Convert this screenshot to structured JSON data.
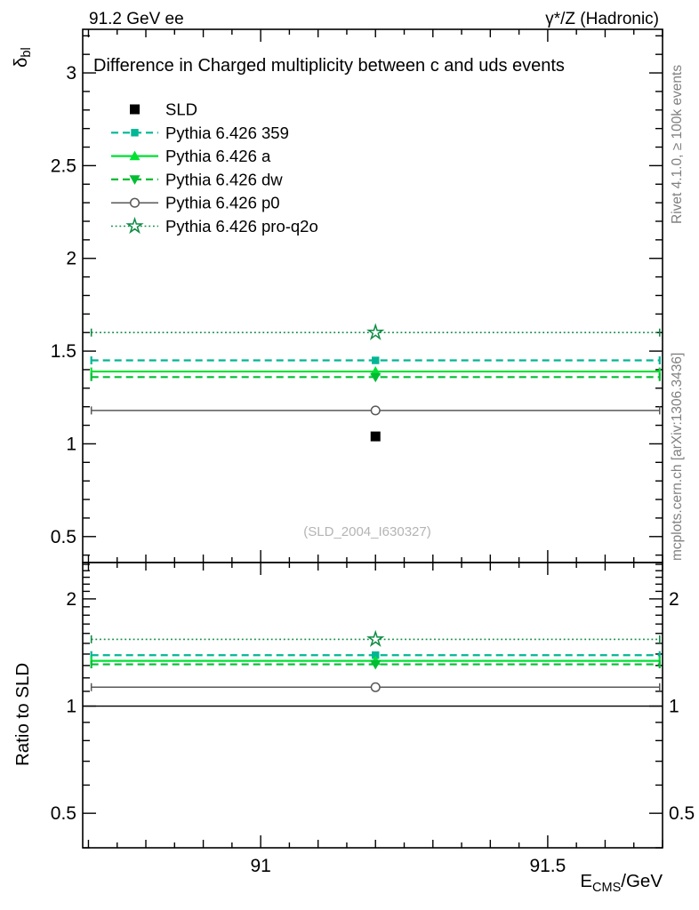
{
  "header": {
    "left": "91.2 GeV ee",
    "right": "γ*/Z (Hadronic)"
  },
  "side_notes": {
    "rivet": "Rivet 4.1.0, ≥ 100k events",
    "mcplots": "mcplots.cern.ch [arXiv:1306.3436]"
  },
  "watermark": "(SLD_2004_I630327)",
  "chart_data": {
    "type": "line",
    "title": "Difference in Charged multiplicity between c and uds events",
    "ylabel": "δ",
    "ylabel_sub": "bl",
    "xlabel": "E",
    "xlabel_sub": "CMS",
    "xlabel_rest": "/GeV",
    "ratio_ylabel": "Ratio to SLD",
    "x": {
      "min": 90.69,
      "max": 91.7,
      "minor_step": 0.05,
      "medium_step": 0.1,
      "major_step": 0.5,
      "ticks_labeled": [
        91,
        91.5
      ]
    },
    "main_axis": {
      "scale": "linear",
      "min": 0.36,
      "max": 3.235,
      "minor_step": 0.1,
      "ticks_labeled": [
        0.5,
        1,
        1.5,
        2,
        2.5,
        3
      ]
    },
    "ratio_axis": {
      "scale": "log",
      "min": 0.4,
      "max": 2.53,
      "minor_step": 0.1,
      "ticks_labeled": [
        0.5,
        1,
        2
      ]
    },
    "bin": {
      "x_low": 90.705,
      "x_high": 91.695,
      "x_center": 91.2
    },
    "reference": {
      "name": "SLD",
      "value": 1.04,
      "ratio": 1.0,
      "marker": "filled-square",
      "color": "#000000"
    },
    "series": [
      {
        "name": "Pythia 6.426 359",
        "value": 1.45,
        "ratio": 1.39,
        "color": "#00b694",
        "line": "dashed",
        "line_width": 2.2,
        "marker": "filled-square"
      },
      {
        "name": "Pythia 6.426 a",
        "value": 1.39,
        "ratio": 1.34,
        "color": "#00e132",
        "line": "solid",
        "line_width": 2.2,
        "marker": "triangle-up"
      },
      {
        "name": "Pythia 6.426 dw",
        "value": 1.36,
        "ratio": 1.31,
        "color": "#00bd32",
        "line": "dashed",
        "line_width": 2.2,
        "marker": "triangle-down"
      },
      {
        "name": "Pythia 6.426 p0",
        "value": 1.18,
        "ratio": 1.13,
        "color": "#58585a",
        "line": "solid",
        "line_width": 1.5,
        "marker": "open-circle"
      },
      {
        "name": "Pythia 6.426 pro-q2o",
        "value": 1.6,
        "ratio": 1.54,
        "color": "#0e8c44",
        "line": "dotted",
        "line_width": 1.6,
        "marker": "open-star"
      }
    ]
  }
}
